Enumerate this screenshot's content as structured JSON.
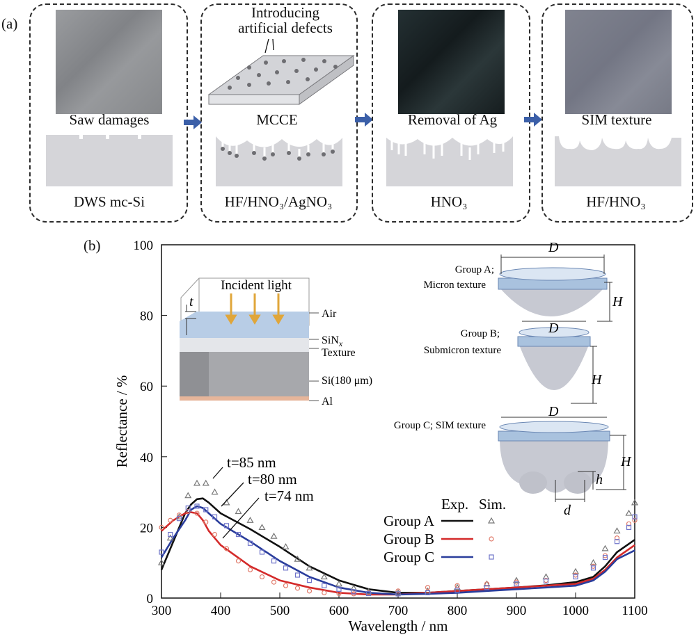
{
  "figure": {
    "panel_a_label": "(a)",
    "panel_b_label": "(b)",
    "steps": [
      {
        "top_label": "Saw damages",
        "bottom_label": "DWS mc-Si",
        "photo_color": "#8e9093"
      },
      {
        "top_title": "Introducing artificial defects",
        "top_label": "MCCE",
        "bottom_label": "HF/HNO₃/AgNO₃"
      },
      {
        "top_label": "Removal of Ag",
        "bottom_label": "HNO₃",
        "photo_color": "#1d2628"
      },
      {
        "top_label": "SIM texture",
        "bottom_label": "HF/HNO₃",
        "photo_color": "#7b7e8d"
      }
    ],
    "inset_left": {
      "incident": "Incident light",
      "t_symbol": "t",
      "layers": [
        "Air",
        "SiNx",
        "Texture",
        "Si(180 μm)",
        "Al"
      ]
    },
    "inset_right": {
      "group_a": [
        "Group A;",
        "Micron texture"
      ],
      "group_b": [
        "Group B;",
        "Submicron texture"
      ],
      "group_c": "Group C; SIM texture",
      "D": "D",
      "H": "H",
      "h": "h",
      "d": "d"
    },
    "annotations": [
      "t=85 nm",
      "t=80 nm",
      "t=74 nm"
    ],
    "legend": {
      "exp": "Exp.",
      "sim": "Sim.",
      "groups": [
        "Group A",
        "Group B",
        "Group C"
      ]
    }
  },
  "chart_data": {
    "type": "line",
    "xlabel": "Wavelength / nm",
    "ylabel": "Reflectance / %",
    "xlim": [
      300,
      1100
    ],
    "ylim": [
      0,
      100
    ],
    "xticks": [
      300,
      400,
      500,
      600,
      700,
      800,
      900,
      1000,
      1100
    ],
    "yticks": [
      0,
      20,
      40,
      60,
      80,
      100
    ],
    "series": [
      {
        "name": "Group A",
        "kind": "Exp.",
        "color": "#111111",
        "x": [
          300,
          320,
          340,
          350,
          360,
          370,
          380,
          400,
          450,
          500,
          550,
          600,
          650,
          700,
          750,
          800,
          850,
          900,
          950,
          1000,
          1030,
          1050,
          1070,
          1100
        ],
        "y": [
          8,
          16,
          24,
          26.5,
          28,
          28.2,
          27,
          24,
          19.5,
          14.5,
          9,
          5,
          2.5,
          1.5,
          1.5,
          2,
          2.5,
          3,
          3.6,
          4.5,
          6,
          9,
          13,
          16.5
        ]
      },
      {
        "name": "Group B",
        "kind": "Exp.",
        "color": "#d42a2a",
        "x": [
          300,
          320,
          340,
          350,
          360,
          370,
          380,
          400,
          450,
          500,
          550,
          600,
          650,
          700,
          750,
          800,
          850,
          900,
          950,
          1000,
          1030,
          1050,
          1070,
          1100
        ],
        "y": [
          19,
          22,
          24,
          24.3,
          24,
          22,
          19,
          15,
          9,
          5,
          3,
          1.5,
          1,
          1,
          1.5,
          2,
          2.5,
          3,
          3.5,
          4,
          5.5,
          8,
          11.5,
          15
        ]
      },
      {
        "name": "Group C",
        "kind": "Exp.",
        "color": "#2a3d9c",
        "x": [
          300,
          320,
          340,
          350,
          360,
          370,
          380,
          400,
          450,
          500,
          550,
          600,
          650,
          700,
          750,
          800,
          850,
          900,
          950,
          1000,
          1030,
          1050,
          1070,
          1100
        ],
        "y": [
          11.5,
          17,
          22,
          25,
          26,
          25.5,
          24,
          21,
          16,
          10.5,
          6,
          3,
          1.5,
          1,
          1.2,
          1.5,
          2,
          2.5,
          3,
          3.5,
          5,
          7.5,
          11,
          13.5
        ]
      },
      {
        "name": "Group A",
        "kind": "Sim.",
        "color": "#777777",
        "marker": "triangle",
        "x": [
          300,
          315,
          330,
          345,
          360,
          375,
          390,
          410,
          430,
          450,
          470,
          490,
          510,
          530,
          550,
          575,
          600,
          625,
          650,
          700,
          750,
          800,
          850,
          900,
          950,
          1000,
          1030,
          1050,
          1070,
          1090,
          1100
        ],
        "y": [
          10,
          17,
          23,
          29,
          32.5,
          32.5,
          30,
          27,
          24.5,
          22,
          20,
          17.5,
          14.5,
          11,
          8.5,
          6,
          4,
          2.8,
          1.8,
          1.5,
          2,
          3,
          4,
          5,
          6,
          7.5,
          10,
          14,
          19,
          24,
          27
        ]
      },
      {
        "name": "Group B",
        "kind": "Sim.",
        "color": "#e07a6a",
        "marker": "circle",
        "x": [
          300,
          315,
          330,
          345,
          360,
          375,
          390,
          410,
          430,
          450,
          470,
          490,
          510,
          530,
          550,
          575,
          600,
          625,
          650,
          700,
          750,
          800,
          850,
          900,
          950,
          1000,
          1030,
          1050,
          1070,
          1090,
          1100
        ],
        "y": [
          20,
          22,
          23.5,
          24.5,
          24,
          21.5,
          18,
          14,
          10.5,
          8,
          6,
          4.5,
          3.5,
          2.8,
          2,
          1.5,
          1.3,
          1.2,
          1.5,
          2,
          3,
          3.5,
          4,
          4.5,
          5,
          6.5,
          9,
          12,
          17,
          21,
          22
        ]
      },
      {
        "name": "Group C",
        "kind": "Sim.",
        "color": "#6f74c9",
        "marker": "square",
        "x": [
          300,
          315,
          330,
          345,
          360,
          375,
          390,
          410,
          430,
          450,
          470,
          490,
          510,
          530,
          550,
          575,
          600,
          625,
          650,
          700,
          750,
          800,
          850,
          900,
          950,
          1000,
          1030,
          1050,
          1070,
          1090,
          1100
        ],
        "y": [
          13,
          18,
          22.5,
          25.5,
          26,
          25,
          23,
          20.5,
          18,
          15.5,
          13,
          10.5,
          8.5,
          6.5,
          5,
          3.5,
          2.5,
          1.8,
          1.3,
          1.2,
          1.5,
          2.2,
          3,
          4,
          4.8,
          6,
          8.5,
          11.5,
          16,
          20,
          23
        ]
      }
    ]
  }
}
